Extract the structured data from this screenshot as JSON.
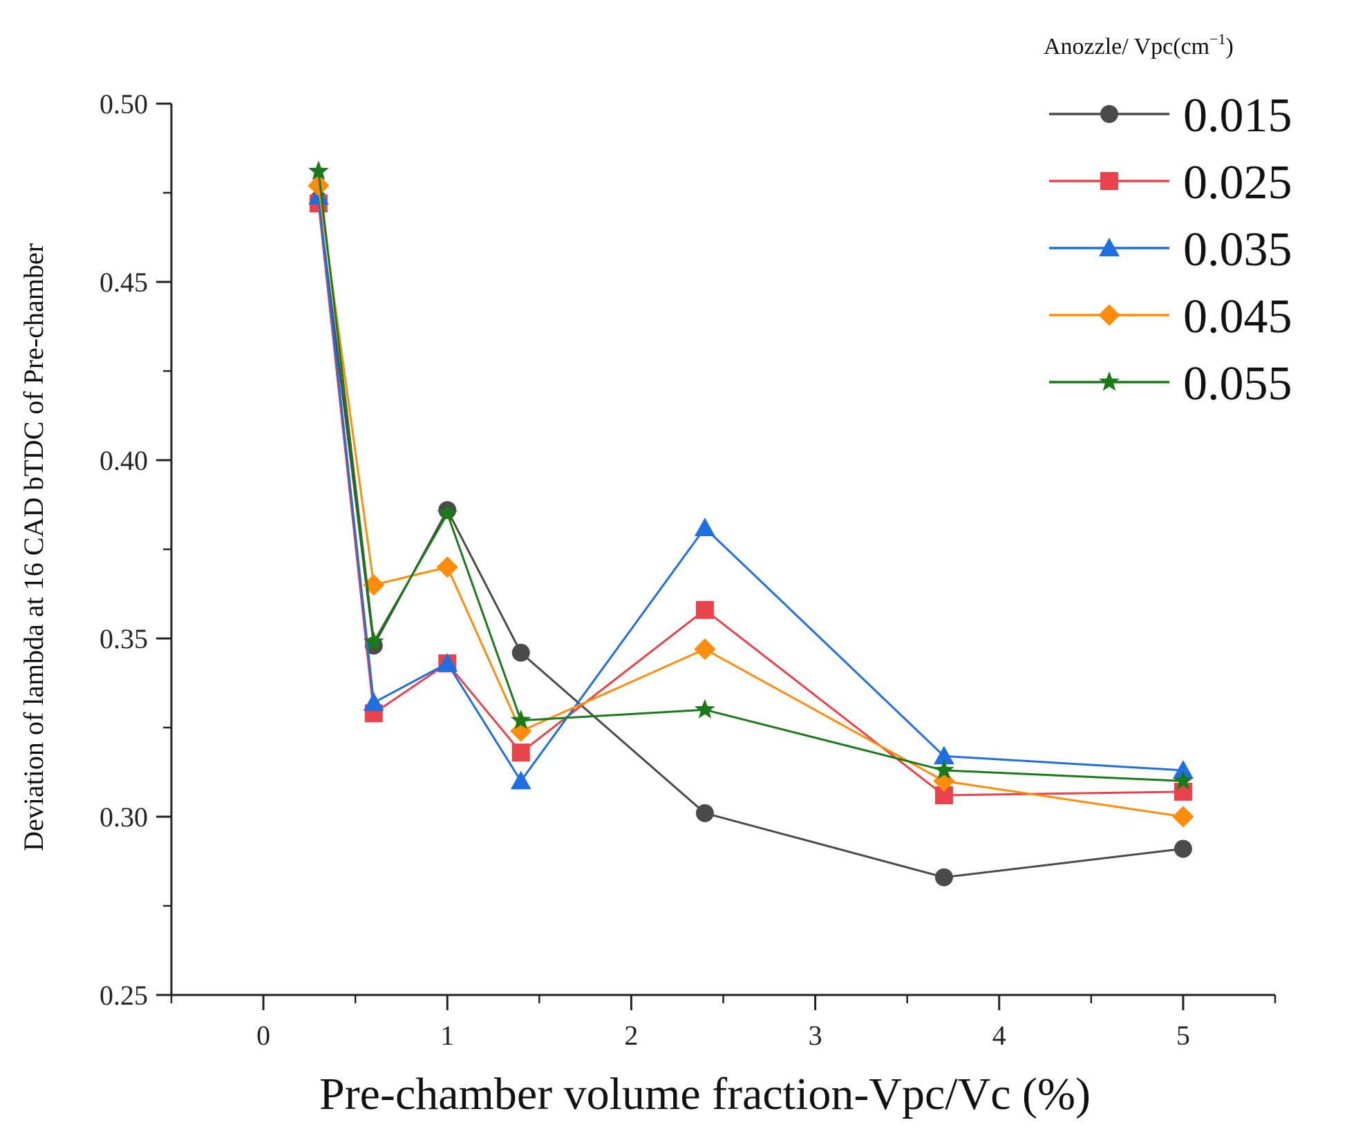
{
  "chart_data": {
    "type": "line",
    "xlabel": "Pre-chamber volume fraction-Vpc/Vc (%)",
    "ylabel": "Deviation of lambda at 16 CAD bTDC of Pre-chamber",
    "xlim": [
      -0.5,
      5.5
    ],
    "ylim": [
      0.25,
      0.5
    ],
    "x_ticks": [
      "0",
      "1",
      "2",
      "3",
      "4",
      "5"
    ],
    "y_ticks": [
      "0.25",
      "0.30",
      "0.35",
      "0.40",
      "0.45",
      "0.50"
    ],
    "grid": false,
    "legend_title": "Anozzle/ Vpc(cm",
    "legend_title_sup": "−1",
    "legend_title_end": ")",
    "legend_position": "top-right",
    "x": [
      0.3,
      0.6,
      1.0,
      1.4,
      2.4,
      3.7,
      5.0
    ],
    "series": [
      {
        "name": "0.015",
        "marker": "circle",
        "color": "#4a4a4a",
        "values": [
          0.473,
          0.348,
          0.386,
          0.346,
          0.301,
          0.283,
          0.291
        ]
      },
      {
        "name": "0.025",
        "marker": "square",
        "color": "#e8424b",
        "values": [
          0.472,
          0.329,
          0.343,
          0.318,
          0.358,
          0.306,
          0.307
        ]
      },
      {
        "name": "0.035",
        "marker": "triangle",
        "color": "#1f6fe0",
        "values": [
          0.474,
          0.332,
          0.343,
          0.31,
          0.381,
          0.317,
          0.313
        ]
      },
      {
        "name": "0.045",
        "marker": "diamond",
        "color": "#ff8c0a",
        "values": [
          0.477,
          0.365,
          0.37,
          0.324,
          0.347,
          0.31,
          0.3
        ]
      },
      {
        "name": "0.055",
        "marker": "star",
        "color": "#1a7a1a",
        "values": [
          0.481,
          0.349,
          0.385,
          0.327,
          0.33,
          0.313,
          0.31
        ]
      }
    ]
  }
}
